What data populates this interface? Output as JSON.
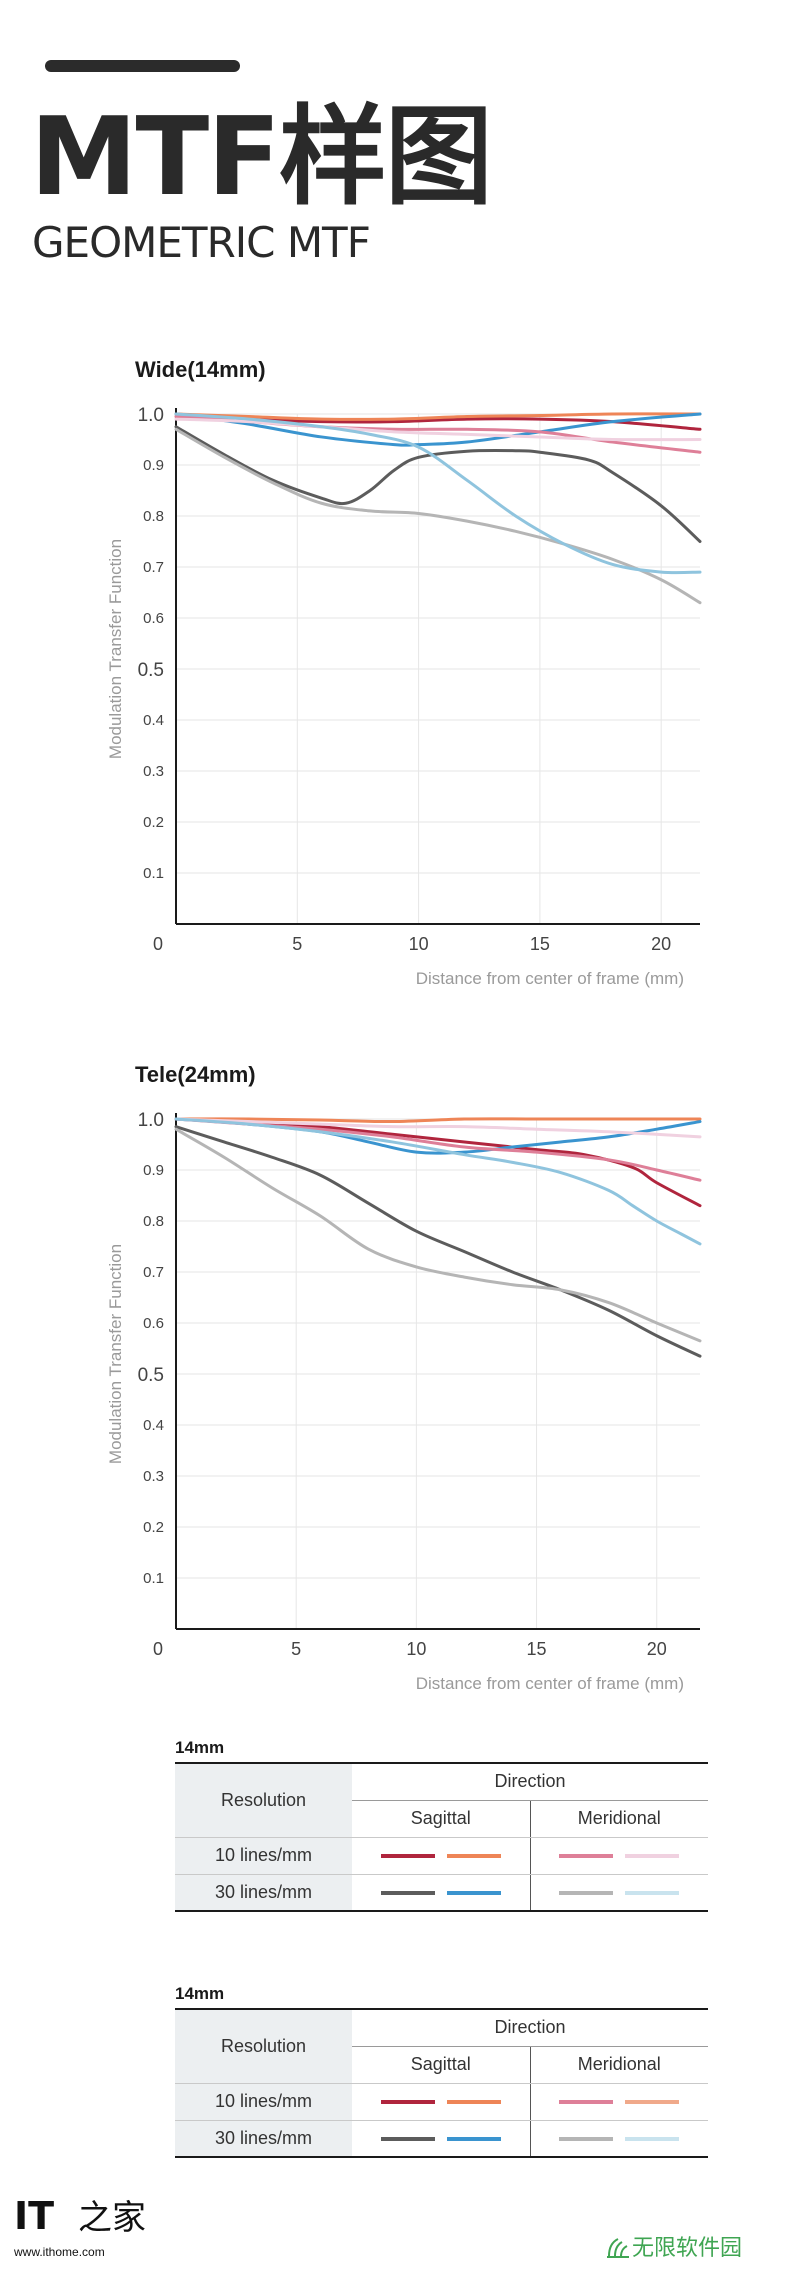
{
  "header": {
    "title": "MTF样图",
    "subtitle": "GEOMETRIC MTF"
  },
  "colors": {
    "sag10": "#b0253d",
    "sag30": "#5c5c5c",
    "sag10b": "#ee8557",
    "sag30b": "#3a94cf",
    "mer10": "#de7f98",
    "mer30": "#b5b5b5",
    "mer10b": "#f0d1e0",
    "mer30b": "#8fc4de"
  },
  "chart_data": [
    {
      "type": "line",
      "title": "Wide(14mm)",
      "xlabel": "Distance from center of frame (mm)",
      "ylabel": "Modulation Transfer Function",
      "xlim": [
        0,
        21.6
      ],
      "ylim": [
        0,
        1.0
      ],
      "x_ticks": [
        "0",
        "5",
        "10",
        "15",
        "20"
      ],
      "y_ticks": [
        "1.0",
        "0.9",
        "0.8",
        "0.7",
        "0.6",
        "0.5",
        "0.4",
        "0.3",
        "0.2",
        "0.1"
      ],
      "grid": true,
      "series": [
        {
          "color": "#b0253d",
          "x": [
            0,
            3,
            6,
            9,
            12,
            15,
            18,
            21.6
          ],
          "y": [
            1.0,
            0.99,
            0.985,
            0.985,
            0.99,
            0.99,
            0.985,
            0.97
          ]
        },
        {
          "color": "#ee8557",
          "x": [
            0,
            3,
            6,
            9,
            12,
            15,
            18,
            21.6
          ],
          "y": [
            1.0,
            0.995,
            0.99,
            0.99,
            0.995,
            0.997,
            1.0,
            1.0
          ]
        },
        {
          "color": "#5c5c5c",
          "x": [
            0,
            2,
            4,
            6,
            7,
            8,
            9,
            10,
            12,
            14,
            15,
            17,
            18,
            20,
            21.6
          ],
          "y": [
            0.975,
            0.92,
            0.87,
            0.835,
            0.825,
            0.85,
            0.89,
            0.915,
            0.927,
            0.928,
            0.925,
            0.91,
            0.885,
            0.82,
            0.75
          ]
        },
        {
          "color": "#3a94cf",
          "x": [
            0,
            3,
            6,
            9,
            10,
            12,
            15,
            18,
            21.6
          ],
          "y": [
            1.0,
            0.98,
            0.955,
            0.94,
            0.94,
            0.945,
            0.965,
            0.985,
            1.0
          ]
        },
        {
          "color": "#de7f98",
          "x": [
            0,
            3,
            6,
            9,
            12,
            15,
            18,
            21.6
          ],
          "y": [
            0.995,
            0.985,
            0.975,
            0.97,
            0.97,
            0.965,
            0.945,
            0.925
          ]
        },
        {
          "color": "#f0d1e0",
          "x": [
            0,
            3,
            6,
            9,
            12,
            15,
            18,
            21.6
          ],
          "y": [
            0.99,
            0.985,
            0.975,
            0.965,
            0.96,
            0.955,
            0.95,
            0.95
          ]
        },
        {
          "color": "#b5b5b5",
          "x": [
            0,
            2,
            4,
            6,
            8,
            10,
            12,
            14,
            16,
            18,
            20,
            21.6
          ],
          "y": [
            0.97,
            0.915,
            0.865,
            0.825,
            0.81,
            0.805,
            0.79,
            0.77,
            0.745,
            0.715,
            0.675,
            0.63
          ]
        },
        {
          "color": "#8fc4de",
          "x": [
            0,
            3,
            6,
            8,
            10,
            12,
            14,
            16,
            18,
            20,
            21.6
          ],
          "y": [
            1.0,
            0.99,
            0.975,
            0.96,
            0.935,
            0.87,
            0.8,
            0.745,
            0.705,
            0.69,
            0.69
          ]
        }
      ]
    },
    {
      "type": "line",
      "title": "Tele(24mm)",
      "xlabel": "Distance from center of frame (mm)",
      "ylabel": "Modulation Transfer Function",
      "xlim": [
        0,
        21.8
      ],
      "ylim": [
        0,
        1.0
      ],
      "x_ticks": [
        "0",
        "5",
        "10",
        "15",
        "20"
      ],
      "y_ticks": [
        "1.0",
        "0.9",
        "0.8",
        "0.7",
        "0.6",
        "0.5",
        "0.4",
        "0.3",
        "0.2",
        "0.1"
      ],
      "grid": true,
      "series": [
        {
          "color": "#b0253d",
          "x": [
            0,
            3,
            6,
            9,
            12,
            15,
            17,
            19,
            20,
            21.8
          ],
          "y": [
            1.0,
            0.995,
            0.985,
            0.97,
            0.955,
            0.94,
            0.93,
            0.905,
            0.875,
            0.83
          ]
        },
        {
          "color": "#ee8557",
          "x": [
            0,
            3,
            6,
            9,
            12,
            15,
            18,
            21.8
          ],
          "y": [
            1.0,
            1.0,
            0.998,
            0.995,
            1.0,
            1.0,
            1.0,
            1.0
          ]
        },
        {
          "color": "#5c5c5c",
          "x": [
            0,
            2,
            4,
            6,
            8,
            10,
            12,
            14,
            16,
            18,
            20,
            21.8
          ],
          "y": [
            0.985,
            0.955,
            0.925,
            0.89,
            0.835,
            0.78,
            0.74,
            0.7,
            0.665,
            0.625,
            0.575,
            0.535
          ]
        },
        {
          "color": "#3a94cf",
          "x": [
            0,
            3,
            6,
            8,
            10,
            12,
            14,
            16,
            18,
            20,
            21.8
          ],
          "y": [
            1.0,
            0.99,
            0.975,
            0.955,
            0.935,
            0.935,
            0.945,
            0.955,
            0.965,
            0.98,
            0.995
          ]
        },
        {
          "color": "#de7f98",
          "x": [
            0,
            3,
            6,
            9,
            12,
            15,
            18,
            20,
            21.8
          ],
          "y": [
            1.0,
            0.99,
            0.98,
            0.965,
            0.945,
            0.935,
            0.92,
            0.9,
            0.88
          ]
        },
        {
          "color": "#f0d1e0",
          "x": [
            0,
            3,
            6,
            9,
            12,
            15,
            18,
            21.8
          ],
          "y": [
            1.0,
            0.995,
            0.99,
            0.985,
            0.985,
            0.98,
            0.975,
            0.965
          ]
        },
        {
          "color": "#b5b5b5",
          "x": [
            0,
            2,
            4,
            6,
            8,
            10,
            12,
            14,
            16,
            18,
            20,
            21.8
          ],
          "y": [
            0.98,
            0.925,
            0.865,
            0.81,
            0.745,
            0.71,
            0.69,
            0.675,
            0.665,
            0.64,
            0.6,
            0.565
          ]
        },
        {
          "color": "#8fc4de",
          "x": [
            0,
            3,
            6,
            9,
            12,
            14,
            16,
            18,
            19,
            20,
            21,
            21.8
          ],
          "y": [
            1.0,
            0.99,
            0.975,
            0.955,
            0.93,
            0.915,
            0.895,
            0.86,
            0.83,
            0.8,
            0.775,
            0.755
          ]
        }
      ]
    }
  ],
  "legends": [
    {
      "title": "14mm",
      "resolution_label": "Resolution",
      "direction_label": "Direction",
      "sagittal_label": "Sagittal",
      "meridional_label": "Meridional",
      "row1_label": "10 lines/mm",
      "row2_label": "30 lines/mm",
      "row1_colors": [
        "#b0253d",
        "#ee8557",
        "#de7f98",
        "#f0d1e0"
      ],
      "row2_colors": [
        "#5c5c5c",
        "#3a94cf",
        "#b5b5b5",
        "#c9e3ee"
      ]
    },
    {
      "title": "14mm",
      "resolution_label": "Resolution",
      "direction_label": "Direction",
      "sagittal_label": "Sagittal",
      "meridional_label": "Meridional",
      "row1_label": "10 lines/mm",
      "row2_label": "30 lines/mm",
      "row1_colors": [
        "#b0253d",
        "#ee8557",
        "#de7f98",
        "#f0a98a"
      ],
      "row2_colors": [
        "#5c5c5c",
        "#3a94cf",
        "#b5b5b5",
        "#c9e3ee"
      ]
    }
  ],
  "footer": {
    "logo_text": "IT",
    "logo_glyph": "之家",
    "logo_url": "www.ithome.com",
    "watermark": "无限软件园"
  }
}
